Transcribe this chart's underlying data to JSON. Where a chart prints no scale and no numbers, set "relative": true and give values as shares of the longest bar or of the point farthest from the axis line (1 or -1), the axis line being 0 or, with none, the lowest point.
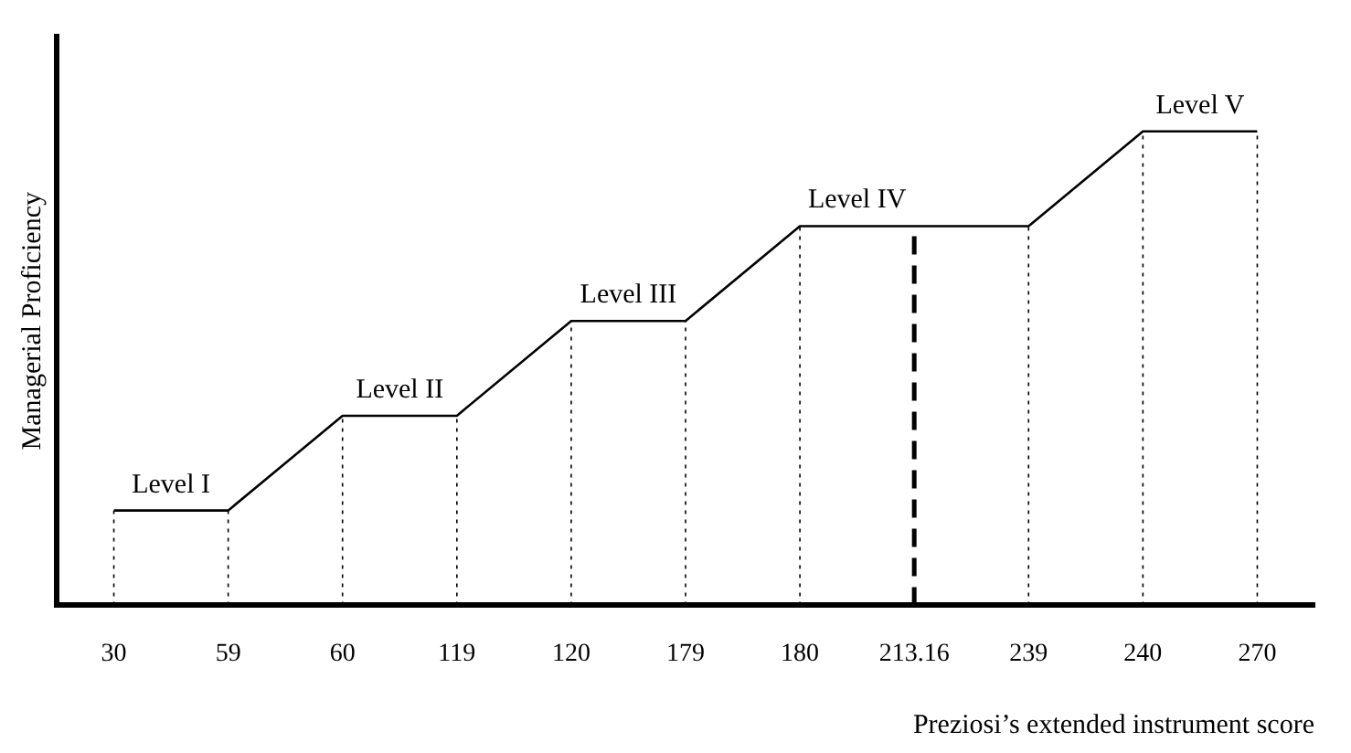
{
  "chart_data": {
    "type": "line",
    "relative": true,
    "xlabel": "Preziosi’s extended instrument score",
    "ylabel": "Managerial Proficiency",
    "categories": [
      "30",
      "59",
      "60",
      "119",
      "120",
      "179",
      "180",
      "213.16",
      "239",
      "240",
      "270"
    ],
    "series": [
      {
        "color": "#000000",
        "values": [
          0.2,
          0.2,
          0.4,
          0.4,
          0.6,
          0.6,
          0.8,
          0.8,
          0.8,
          1.0,
          1.0
        ]
      }
    ],
    "ref_lines": [
      {
        "axis": "x",
        "value": "30",
        "line_style": "dotted"
      },
      {
        "axis": "x",
        "value": "59",
        "line_style": "dotted"
      },
      {
        "axis": "x",
        "value": "60",
        "line_style": "dotted"
      },
      {
        "axis": "x",
        "value": "119",
        "line_style": "dotted"
      },
      {
        "axis": "x",
        "value": "120",
        "line_style": "dotted"
      },
      {
        "axis": "x",
        "value": "179",
        "line_style": "dotted"
      },
      {
        "axis": "x",
        "value": "180",
        "line_style": "dotted"
      },
      {
        "axis": "x",
        "value": "213.16",
        "line_style": "dashed"
      },
      {
        "axis": "x",
        "value": "239",
        "line_style": "dotted"
      },
      {
        "axis": "x",
        "value": "240",
        "line_style": "dotted"
      },
      {
        "axis": "x",
        "value": "270",
        "line_style": "dotted"
      }
    ],
    "annotations": [
      {
        "text": "Level I",
        "x": "30",
        "y": 0.2
      },
      {
        "text": "Level II",
        "x": "60",
        "y": 0.4
      },
      {
        "text": "Level III",
        "x": "120",
        "y": 0.6
      },
      {
        "text": "Level IV",
        "x": "180",
        "y": 0.8
      },
      {
        "text": "Level V",
        "x": "240",
        "y": 1.0
      }
    ],
    "grid": false,
    "legend": false,
    "marker": "none",
    "line_style": "solid"
  }
}
